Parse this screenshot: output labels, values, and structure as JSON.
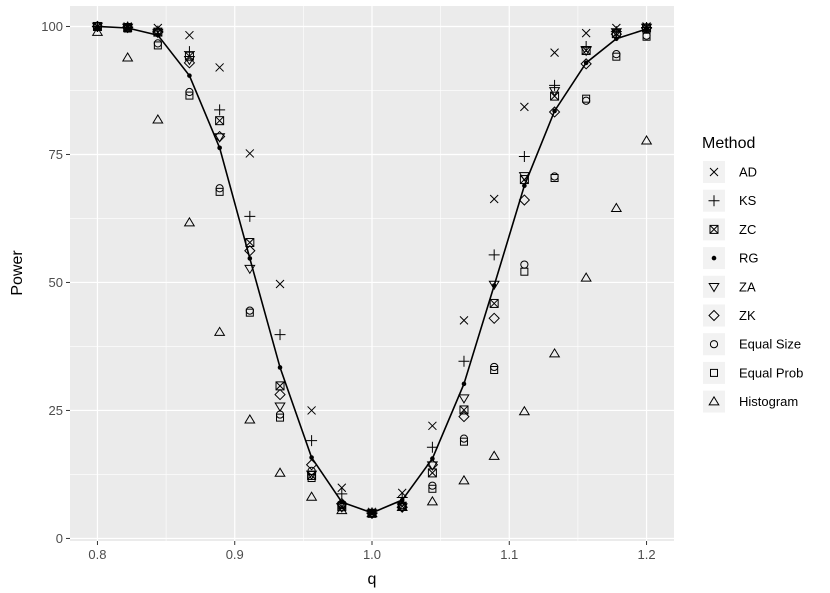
{
  "chart_data": {
    "type": "scatter",
    "xlabel": "q",
    "ylabel": "Power",
    "xlim": [
      0.78,
      1.22
    ],
    "ylim": [
      -0.5,
      104
    ],
    "x_ticks": [
      0.8,
      0.9,
      1.0,
      1.1,
      1.2
    ],
    "x_tick_labels": [
      "0.8",
      "0.9",
      "1.0",
      "1.1",
      "1.2"
    ],
    "y_ticks": [
      0,
      25,
      50,
      75,
      100
    ],
    "y_tick_labels": [
      "0",
      "25",
      "50",
      "75",
      "100"
    ],
    "grid": true,
    "background": "#ebebeb",
    "legend_title": "Method",
    "legend_position": "right",
    "x": [
      0.8,
      0.822,
      0.844,
      0.867,
      0.889,
      0.911,
      0.933,
      0.956,
      0.978,
      1.0,
      1.022,
      1.044,
      1.067,
      1.089,
      1.111,
      1.133,
      1.156,
      1.178,
      1.2
    ],
    "series": [
      {
        "name": "AD",
        "shape": "cross",
        "values": [
          100,
          100,
          99.7,
          98.3,
          92,
          75.2,
          49.7,
          25,
          9.9,
          5.2,
          8.9,
          22,
          42.6,
          66.3,
          84.3,
          94.9,
          98.7,
          99.7,
          100
        ]
      },
      {
        "name": "KS",
        "shape": "plus",
        "values": [
          100,
          99.9,
          99.1,
          95.1,
          83.7,
          62.9,
          39.8,
          19.1,
          8.7,
          5,
          8,
          17.8,
          34.6,
          55.4,
          74.6,
          88.5,
          96.1,
          99,
          99.8
        ]
      },
      {
        "name": "ZC",
        "shape": "boxed-x",
        "values": [
          100,
          99.8,
          98.9,
          94.2,
          81.6,
          57.8,
          29.8,
          12.3,
          6.2,
          4.9,
          6.3,
          12.8,
          25.1,
          45.9,
          70.1,
          86.4,
          95.3,
          98.6,
          99.7
        ]
      },
      {
        "name": "RG",
        "shape": "dot",
        "values": [
          100,
          99.7,
          98.3,
          90.4,
          76.3,
          54.7,
          33.4,
          15.8,
          7.1,
          5,
          7.5,
          15.6,
          30.2,
          49.4,
          68.9,
          83.5,
          92.9,
          97.6,
          99.5
        ]
      },
      {
        "name": "ZA",
        "shape": "triangle-down",
        "values": [
          100,
          99.8,
          98.8,
          93.5,
          78.4,
          52.7,
          25.8,
          12.5,
          6.1,
          4.9,
          6.1,
          14.3,
          27.4,
          49.6,
          70.8,
          87.4,
          95.3,
          98.9,
          99.8
        ]
      },
      {
        "name": "ZK",
        "shape": "diamond",
        "values": [
          100,
          99.8,
          98.9,
          92.9,
          78.5,
          56.2,
          28.1,
          14.4,
          6.8,
          4.9,
          6.1,
          14.4,
          23.8,
          43,
          66.1,
          83.3,
          92.7,
          98.5,
          99.7
        ]
      },
      {
        "name": "Equal Size",
        "shape": "circle",
        "values": [
          100,
          99.7,
          96.7,
          87.2,
          68.4,
          44.5,
          24.2,
          13.2,
          6.6,
          4.9,
          6.5,
          10.3,
          19.5,
          33.5,
          53.5,
          70.7,
          85.5,
          94.6,
          98.2
        ]
      },
      {
        "name": "Equal Prob",
        "shape": "square",
        "values": [
          100,
          99.6,
          96.3,
          86.5,
          67.7,
          44.1,
          23.6,
          11.8,
          6.5,
          4.9,
          6.2,
          9.7,
          18.9,
          32.9,
          52.1,
          70.4,
          85.9,
          94.1,
          98
        ]
      },
      {
        "name": "Histogram",
        "shape": "triangle-up",
        "values": [
          98.9,
          93.9,
          81.8,
          61.7,
          40.3,
          23.2,
          12.8,
          8.1,
          5.5,
          4.9,
          6.1,
          7.2,
          11.3,
          16.1,
          24.8,
          36.1,
          50.9,
          64.5,
          77.7
        ]
      }
    ],
    "line_series": "RG"
  }
}
